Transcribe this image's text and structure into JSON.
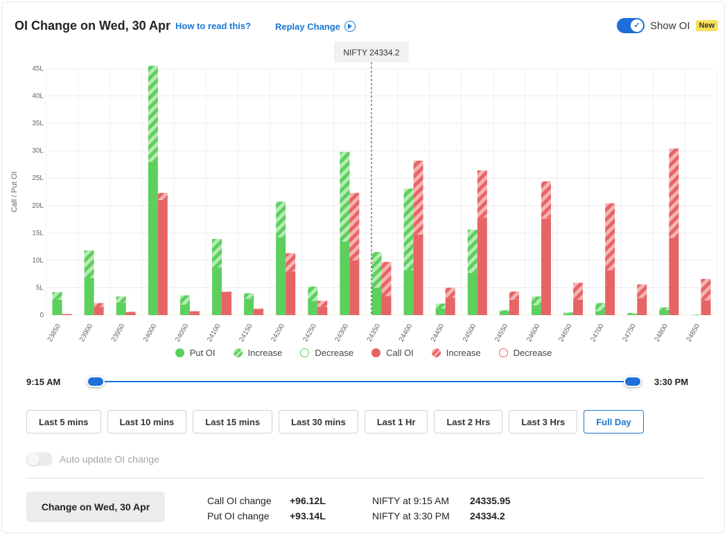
{
  "header": {
    "title": "OI Change on Wed, 30 Apr",
    "how_to_read": "How to read this?",
    "replay": "Replay Change",
    "show_oi_label": "Show OI",
    "new_badge": "New"
  },
  "chart_data": {
    "type": "bar",
    "ylabel": "Call / Put OI",
    "ylim": [
      0,
      45
    ],
    "y_ticks": [
      "0",
      "5L",
      "10L",
      "15L",
      "20L",
      "25L",
      "30L",
      "35L",
      "40L",
      "45L"
    ],
    "categories": [
      "23850",
      "23900",
      "23950",
      "24000",
      "24050",
      "24100",
      "24150",
      "24200",
      "24250",
      "24300",
      "24350",
      "24400",
      "24450",
      "24500",
      "24550",
      "24600",
      "24650",
      "24700",
      "24750",
      "24800",
      "24850"
    ],
    "series": [
      {
        "name": "Put OI",
        "values": [
          2.8,
          6.8,
          2.3,
          28.0,
          1.9,
          8.7,
          3.0,
          14.2,
          2.6,
          13.4,
          5.0,
          8.2,
          1.2,
          7.7,
          0.7,
          1.8,
          0.3,
          0.7,
          0.2,
          0.9,
          0.0
        ]
      },
      {
        "name": "Put OI Increase",
        "values": [
          1.4,
          5.0,
          1.1,
          17.5,
          1.7,
          5.2,
          1.0,
          6.5,
          2.6,
          16.4,
          6.5,
          14.9,
          0.9,
          7.9,
          0.2,
          1.6,
          0.2,
          1.5,
          0.2,
          0.5,
          0.1
        ]
      },
      {
        "name": "Call OI",
        "values": [
          0.2,
          1.5,
          0.5,
          21.0,
          0.7,
          4.2,
          1.1,
          8.0,
          1.5,
          10.0,
          3.5,
          14.7,
          3.2,
          17.8,
          2.8,
          17.6,
          2.8,
          8.2,
          3.1,
          14.1,
          2.7
        ]
      },
      {
        "name": "Call OI Increase",
        "values": [
          0.0,
          0.7,
          0.1,
          1.3,
          0.0,
          0.1,
          0.1,
          3.3,
          1.1,
          12.3,
          6.2,
          13.5,
          1.8,
          8.6,
          1.5,
          6.8,
          3.1,
          12.2,
          2.5,
          16.3,
          3.9
        ]
      }
    ],
    "legend": [
      "Put OI",
      "Increase",
      "Decrease",
      "Call OI",
      "Increase",
      "Decrease"
    ],
    "legend_placement": "bottom",
    "spot_marker": {
      "label": "NIFTY 24334.2",
      "value": 24334.2
    },
    "colors": {
      "put": "#5ccf5c",
      "put_light": "#b7ebb7",
      "call": "#e86464",
      "call_light": "#f5b3b3"
    },
    "grid": true
  },
  "legend_labels": {
    "put_oi": "Put OI",
    "put_inc": "Increase",
    "put_dec": "Decrease",
    "call_oi": "Call OI",
    "call_inc": "Increase",
    "call_dec": "Decrease"
  },
  "slider": {
    "start": "9:15 AM",
    "end": "3:30 PM"
  },
  "ranges": [
    "Last 5 mins",
    "Last 10 mins",
    "Last 15 mins",
    "Last 30 mins",
    "Last 1 Hr",
    "Last 2 Hrs",
    "Last 3 Hrs",
    "Full Day"
  ],
  "active_range": "Full Day",
  "auto_update_label": "Auto update OI change",
  "summary": {
    "change_button": "Change on Wed, 30 Apr",
    "call_label": "Call OI change",
    "call_value": "+96.12L",
    "put_label": "Put OI change",
    "put_value": "+93.14L",
    "nifty_start_label": "NIFTY at 9:15 AM",
    "nifty_start_value": "24335.95",
    "nifty_end_label": "NIFTY at 3:30 PM",
    "nifty_end_value": "24334.2"
  }
}
